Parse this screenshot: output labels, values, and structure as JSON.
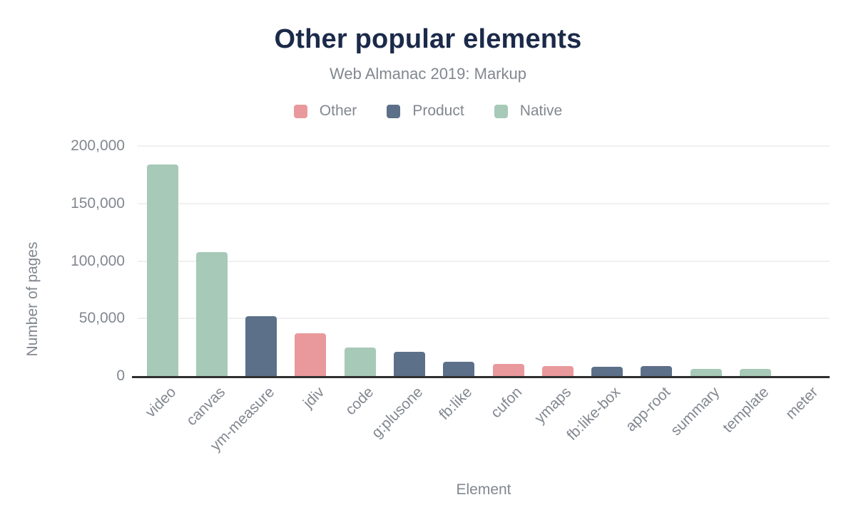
{
  "page": {
    "title": "Other popular elements",
    "subtitle": "Web Almanac 2019: Markup"
  },
  "colors": {
    "title": "#1b2a49",
    "text_gray": "#82878f",
    "gridline": "#f0f0f1",
    "axis_line": "#2f2f2f",
    "background": "#ffffff"
  },
  "chart_data": {
    "type": "bar",
    "title": "Other popular elements",
    "subtitle": "Web Almanac 2019: Markup",
    "xlabel": "Element",
    "ylabel": "Number of pages",
    "ylim": [
      0,
      200000
    ],
    "grid": "horizontal",
    "legend_position": "top",
    "y_ticks": [
      {
        "value": 0,
        "label": "0"
      },
      {
        "value": 50000,
        "label": "50,000"
      },
      {
        "value": 100000,
        "label": "100,000"
      },
      {
        "value": 150000,
        "label": "150,000"
      },
      {
        "value": 200000,
        "label": "200,000"
      }
    ],
    "legend": [
      {
        "label": "Other",
        "color": "#e9999c"
      },
      {
        "label": "Product",
        "color": "#5d7089"
      },
      {
        "label": "Native",
        "color": "#a7c9b8"
      }
    ],
    "points": [
      {
        "category": "video",
        "value": 184000,
        "series": "Native"
      },
      {
        "category": "canvas",
        "value": 108000,
        "series": "Native"
      },
      {
        "category": "ym-measure",
        "value": 52000,
        "series": "Product"
      },
      {
        "category": "jdiv",
        "value": 37000,
        "series": "Other"
      },
      {
        "category": "code",
        "value": 25000,
        "series": "Native"
      },
      {
        "category": "g:plusone",
        "value": 21000,
        "series": "Product"
      },
      {
        "category": "fb:like",
        "value": 12700,
        "series": "Product"
      },
      {
        "category": "cufon",
        "value": 10500,
        "series": "Other"
      },
      {
        "category": "ymaps",
        "value": 8600,
        "series": "Other"
      },
      {
        "category": "fb:like-box",
        "value": 7900,
        "series": "Product"
      },
      {
        "category": "app-root",
        "value": 8500,
        "series": "Product"
      },
      {
        "category": "summary",
        "value": 6500,
        "series": "Native"
      },
      {
        "category": "template",
        "value": 6300,
        "series": "Native"
      },
      {
        "category": "meter",
        "value": 0,
        "series": "Native"
      }
    ]
  }
}
